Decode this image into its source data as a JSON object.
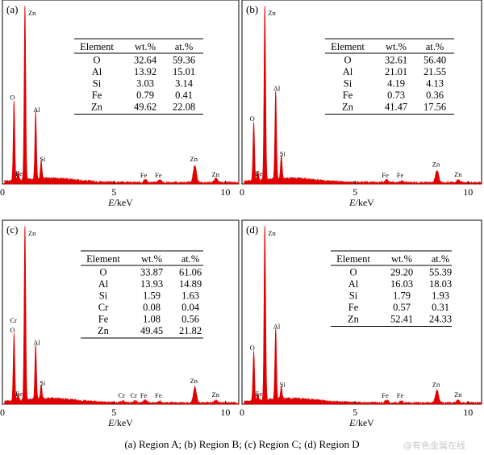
{
  "figure": {
    "caption": "(a) Region A; (b) Region B; (c) Region C; (d) Region D",
    "watermark": "@有色金属在线",
    "colors": {
      "spectrum": "#e00000",
      "axes": "#000000"
    }
  },
  "chart_data": [
    {
      "type": "area",
      "panel_label": "(a)",
      "xlabel": "E/keV",
      "xlim": [
        0,
        10.6
      ],
      "xticks": [
        "0",
        "5",
        "10"
      ],
      "ylim": [
        0,
        100
      ],
      "peaks": [
        {
          "label": "O",
          "x": 0.52,
          "y": 45
        },
        {
          "label": "Zn",
          "x": 1.01,
          "y": 100
        },
        {
          "label": "Al",
          "x": 1.49,
          "y": 38
        },
        {
          "label": "Si",
          "x": 1.74,
          "y": 10
        },
        {
          "label": "Fe",
          "x": 0.7,
          "y": 5
        },
        {
          "label": "Fe",
          "x": 6.4,
          "y": 2
        },
        {
          "label": "Fe",
          "x": 7.06,
          "y": 1.5
        },
        {
          "label": "Zn",
          "x": 8.63,
          "y": 10
        },
        {
          "label": "Zn",
          "x": 9.57,
          "y": 2.5
        }
      ],
      "table": {
        "headers": [
          "Element",
          "wt.%",
          "at.%"
        ],
        "rows": [
          [
            "O",
            "32.64",
            "59.36"
          ],
          [
            "Al",
            "13.92",
            "15.01"
          ],
          [
            "Si",
            "3.03",
            "3.14"
          ],
          [
            "Fe",
            "0.79",
            "0.41"
          ],
          [
            "Zn",
            "49.62",
            "22.08"
          ]
        ]
      }
    },
    {
      "type": "area",
      "panel_label": "(b)",
      "xlabel": "E/keV",
      "xlim": [
        0,
        10.6
      ],
      "xticks": [
        "0",
        "5",
        "10"
      ],
      "ylim": [
        0,
        100
      ],
      "peaks": [
        {
          "label": "O",
          "x": 0.52,
          "y": 33
        },
        {
          "label": "Zn",
          "x": 1.01,
          "y": 100
        },
        {
          "label": "Al",
          "x": 1.49,
          "y": 50
        },
        {
          "label": "Si",
          "x": 1.74,
          "y": 13
        },
        {
          "label": "Fe",
          "x": 0.7,
          "y": 5
        },
        {
          "label": "Fe",
          "x": 6.4,
          "y": 1.5
        },
        {
          "label": "Fe",
          "x": 7.06,
          "y": 1
        },
        {
          "label": "Zn",
          "x": 8.63,
          "y": 7
        },
        {
          "label": "Zn",
          "x": 9.57,
          "y": 1.5
        }
      ],
      "table": {
        "headers": [
          "Element",
          "wt.%",
          "at.%"
        ],
        "rows": [
          [
            "O",
            "32.61",
            "56.40"
          ],
          [
            "Al",
            "21.01",
            "21.55"
          ],
          [
            "Si",
            "4.19",
            "4.13"
          ],
          [
            "Fe",
            "0.73",
            "0.36"
          ],
          [
            "Zn",
            "41.47",
            "17.56"
          ]
        ]
      }
    },
    {
      "type": "area",
      "panel_label": "(c)",
      "xlabel": "E/keV",
      "xlim": [
        0,
        10.6
      ],
      "xticks": [
        "0",
        "5",
        "10"
      ],
      "ylim": [
        0,
        100
      ],
      "peaks": [
        {
          "label": "Cr\nO",
          "x": 0.52,
          "y": 38
        },
        {
          "label": "Zn",
          "x": 1.01,
          "y": 100
        },
        {
          "label": "Al",
          "x": 1.49,
          "y": 31
        },
        {
          "label": "Si",
          "x": 1.74,
          "y": 8
        },
        {
          "label": "Fe",
          "x": 0.7,
          "y": 4
        },
        {
          "label": "Cr",
          "x": 5.41,
          "y": 1
        },
        {
          "label": "Cr",
          "x": 5.95,
          "y": 1
        },
        {
          "label": "Fe",
          "x": 6.4,
          "y": 1.5
        },
        {
          "label": "Fe",
          "x": 7.06,
          "y": 1
        },
        {
          "label": "Zn",
          "x": 8.63,
          "y": 9
        },
        {
          "label": "Zn",
          "x": 9.57,
          "y": 1.5
        }
      ],
      "table": {
        "headers": [
          "Element",
          "wt.%",
          "at.%"
        ],
        "rows": [
          [
            "O",
            "33.87",
            "61.06"
          ],
          [
            "Al",
            "13.93",
            "14.89"
          ],
          [
            "Si",
            "1.59",
            "1.63"
          ],
          [
            "Cr",
            "0.08",
            "0.04"
          ],
          [
            "Fe",
            "1.08",
            "0.56"
          ],
          [
            "Zn",
            "49.45",
            "21.82"
          ]
        ]
      }
    },
    {
      "type": "area",
      "panel_label": "(d)",
      "xlabel": "E/keV",
      "xlim": [
        0,
        10.6
      ],
      "xticks": [
        "0",
        "5",
        "10"
      ],
      "ylim": [
        0,
        100
      ],
      "peaks": [
        {
          "label": "O",
          "x": 0.52,
          "y": 28
        },
        {
          "label": "Zn",
          "x": 1.01,
          "y": 100
        },
        {
          "label": "Al",
          "x": 1.49,
          "y": 40
        },
        {
          "label": "Si",
          "x": 1.74,
          "y": 7
        },
        {
          "label": "Fe",
          "x": 0.7,
          "y": 4
        },
        {
          "label": "Fe",
          "x": 6.4,
          "y": 1.5
        },
        {
          "label": "Fe",
          "x": 7.06,
          "y": 1
        },
        {
          "label": "Zn",
          "x": 8.63,
          "y": 7
        },
        {
          "label": "Zn",
          "x": 9.57,
          "y": 1.5
        }
      ],
      "table": {
        "headers": [
          "Element",
          "wt.%",
          "at.%"
        ],
        "rows": [
          [
            "O",
            "29.20",
            "55.39"
          ],
          [
            "Al",
            "16.03",
            "18.03"
          ],
          [
            "Si",
            "1.79",
            "1.93"
          ],
          [
            "Fe",
            "0.57",
            "0.31"
          ],
          [
            "Zn",
            "52.41",
            "24.33"
          ]
        ]
      }
    }
  ]
}
